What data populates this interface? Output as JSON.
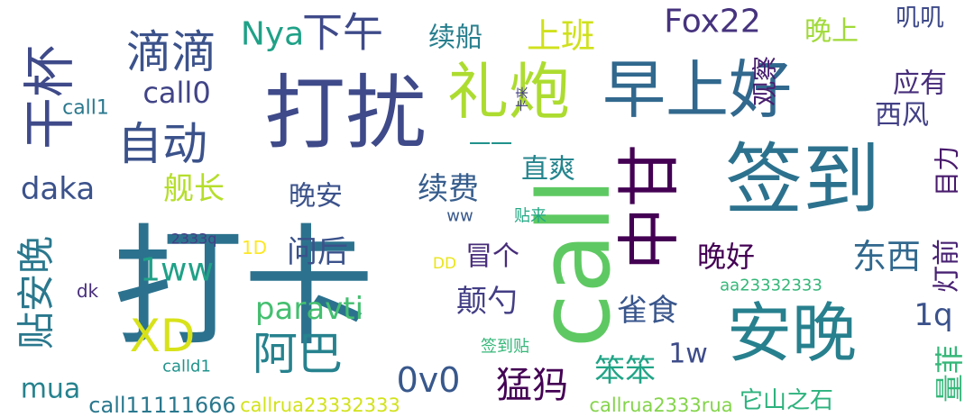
{
  "background": "#ffffff",
  "words": [
    {
      "text": "打卡",
      "color": "#2c728e"
    },
    {
      "text": "签到",
      "color": "#2c728e"
    },
    {
      "text": "打扰",
      "color": "#3e4a89"
    },
    {
      "text": "早上好",
      "color": "#31688e"
    },
    {
      "text": "安晚",
      "color": "#27808e"
    },
    {
      "text": "call",
      "color": "#5ec962"
    },
    {
      "text": "礼炮",
      "color": "#addc30"
    },
    {
      "text": "干杯",
      "color": "#3e4a89"
    },
    {
      "text": "中甘",
      "color": "#440154"
    },
    {
      "text": "自动",
      "color": "#3b528b"
    },
    {
      "text": "滴滴",
      "color": "#3b528b"
    },
    {
      "text": "下午",
      "color": "#3e4a89"
    },
    {
      "text": "上班",
      "color": "#d0e11c"
    },
    {
      "text": "Fox22",
      "color": "#46337e"
    },
    {
      "text": "晚上",
      "color": "#a0da39"
    },
    {
      "text": "叽叽",
      "color": "#3e4a89"
    },
    {
      "text": "应有",
      "color": "#472d7b"
    },
    {
      "text": "Nya",
      "color": "#1fa187"
    },
    {
      "text": "续船",
      "color": "#277f8e"
    },
    {
      "text": "观察",
      "color": "#481f70"
    },
    {
      "text": "卡来",
      "color": "#433e85"
    },
    {
      "text": "西风",
      "color": "#424086"
    },
    {
      "text": "call0",
      "color": "#414487"
    },
    {
      "text": "call1",
      "color": "#2a788e"
    },
    {
      "text": "一一",
      "color": "#21918c"
    },
    {
      "text": "直爽",
      "color": "#25858e"
    },
    {
      "text": "目力",
      "color": "#481a6c"
    },
    {
      "text": "daka",
      "color": "#3b528b"
    },
    {
      "text": "舰长",
      "color": "#b5de2b"
    },
    {
      "text": "晚安",
      "color": "#3b528b"
    },
    {
      "text": "续费",
      "color": "#365d8d"
    },
    {
      "text": "灯前",
      "color": "#482173"
    },
    {
      "text": "ww",
      "color": "#38588c"
    },
    {
      "text": "贴来",
      "color": "#22a884"
    },
    {
      "text": "贴安晚",
      "color": "#2a788e"
    },
    {
      "text": "问后",
      "color": "#3b528b"
    },
    {
      "text": "冒个",
      "color": "#472c7a"
    },
    {
      "text": "晚好",
      "color": "#440154"
    },
    {
      "text": "东西",
      "color": "#31688e"
    },
    {
      "text": "2333q",
      "color": "#433e85"
    },
    {
      "text": "1D",
      "color": "#fde725"
    },
    {
      "text": "1ww",
      "color": "#1fa187"
    },
    {
      "text": "DD",
      "color": "#eae51a"
    },
    {
      "text": "aa23332333",
      "color": "#35b779"
    },
    {
      "text": "paravti",
      "color": "#44bf70"
    },
    {
      "text": "颠勺",
      "color": "#433e85"
    },
    {
      "text": "雀食",
      "color": "#39568c"
    },
    {
      "text": "1q",
      "color": "#3b528b"
    },
    {
      "text": "dk",
      "color": "#472d7b"
    },
    {
      "text": "XD",
      "color": "#d8e219"
    },
    {
      "text": "阿巴",
      "color": "#26828e"
    },
    {
      "text": "量菲",
      "color": "#35b779"
    },
    {
      "text": "mua",
      "color": "#26828e"
    },
    {
      "text": "0v0",
      "color": "#38588c"
    },
    {
      "text": "签到贴",
      "color": "#35b779"
    },
    {
      "text": "1w",
      "color": "#3e4c8a"
    },
    {
      "text": "calld1",
      "color": "#20938c"
    },
    {
      "text": "猛犸",
      "color": "#440154"
    },
    {
      "text": "笨笨",
      "color": "#20a486"
    },
    {
      "text": "call11111666",
      "color": "#2a788e"
    },
    {
      "text": "callrua23332333",
      "color": "#d2e21b"
    },
    {
      "text": "callrua2333rua",
      "color": "#84d44b"
    },
    {
      "text": "它山之石",
      "color": "#2db27d"
    }
  ]
}
